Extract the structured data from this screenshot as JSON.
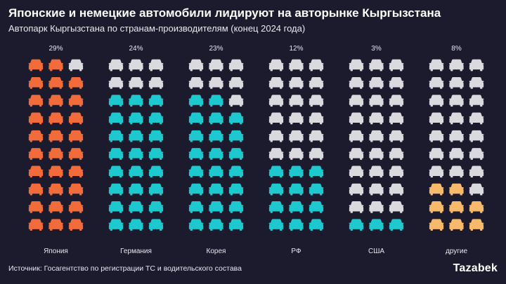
{
  "title": "Японские и немецкие автомобили лидируют на авторынке Кыргызстана",
  "subtitle": "Автопарк Кыргызстана по странам-производителям (конец 2024 года)",
  "source": "Источник: Госагентство по регистрации ТС и водительского состава",
  "logo": "Tazabek",
  "colors": {
    "background": "#1c1b2e",
    "empty": "#d9d9de",
    "japan": "#f26b3a",
    "germany_korea_rf_usa": "#1ec8cf",
    "other": "#f7b96a"
  },
  "chart_data": {
    "type": "waffle",
    "title": "Японские и немецкие автомобили лидируют на авторынке Кыргызстана",
    "subtitle": "Автопарк Кыргызстана по странам-производителям (конец 2024 года)",
    "units_per_column": 30,
    "icon": "car-icon",
    "categories": [
      "Япония",
      "Германия",
      "Корея",
      "РФ",
      "США",
      "другие"
    ],
    "value_labels": [
      "29%",
      "24%",
      "23%",
      "12%",
      "3%",
      "8%"
    ],
    "values": [
      29,
      24,
      23,
      12,
      3,
      8
    ],
    "colors": [
      "#f26b3a",
      "#1ec8cf",
      "#1ec8cf",
      "#1ec8cf",
      "#1ec8cf",
      "#f7b96a"
    ]
  }
}
